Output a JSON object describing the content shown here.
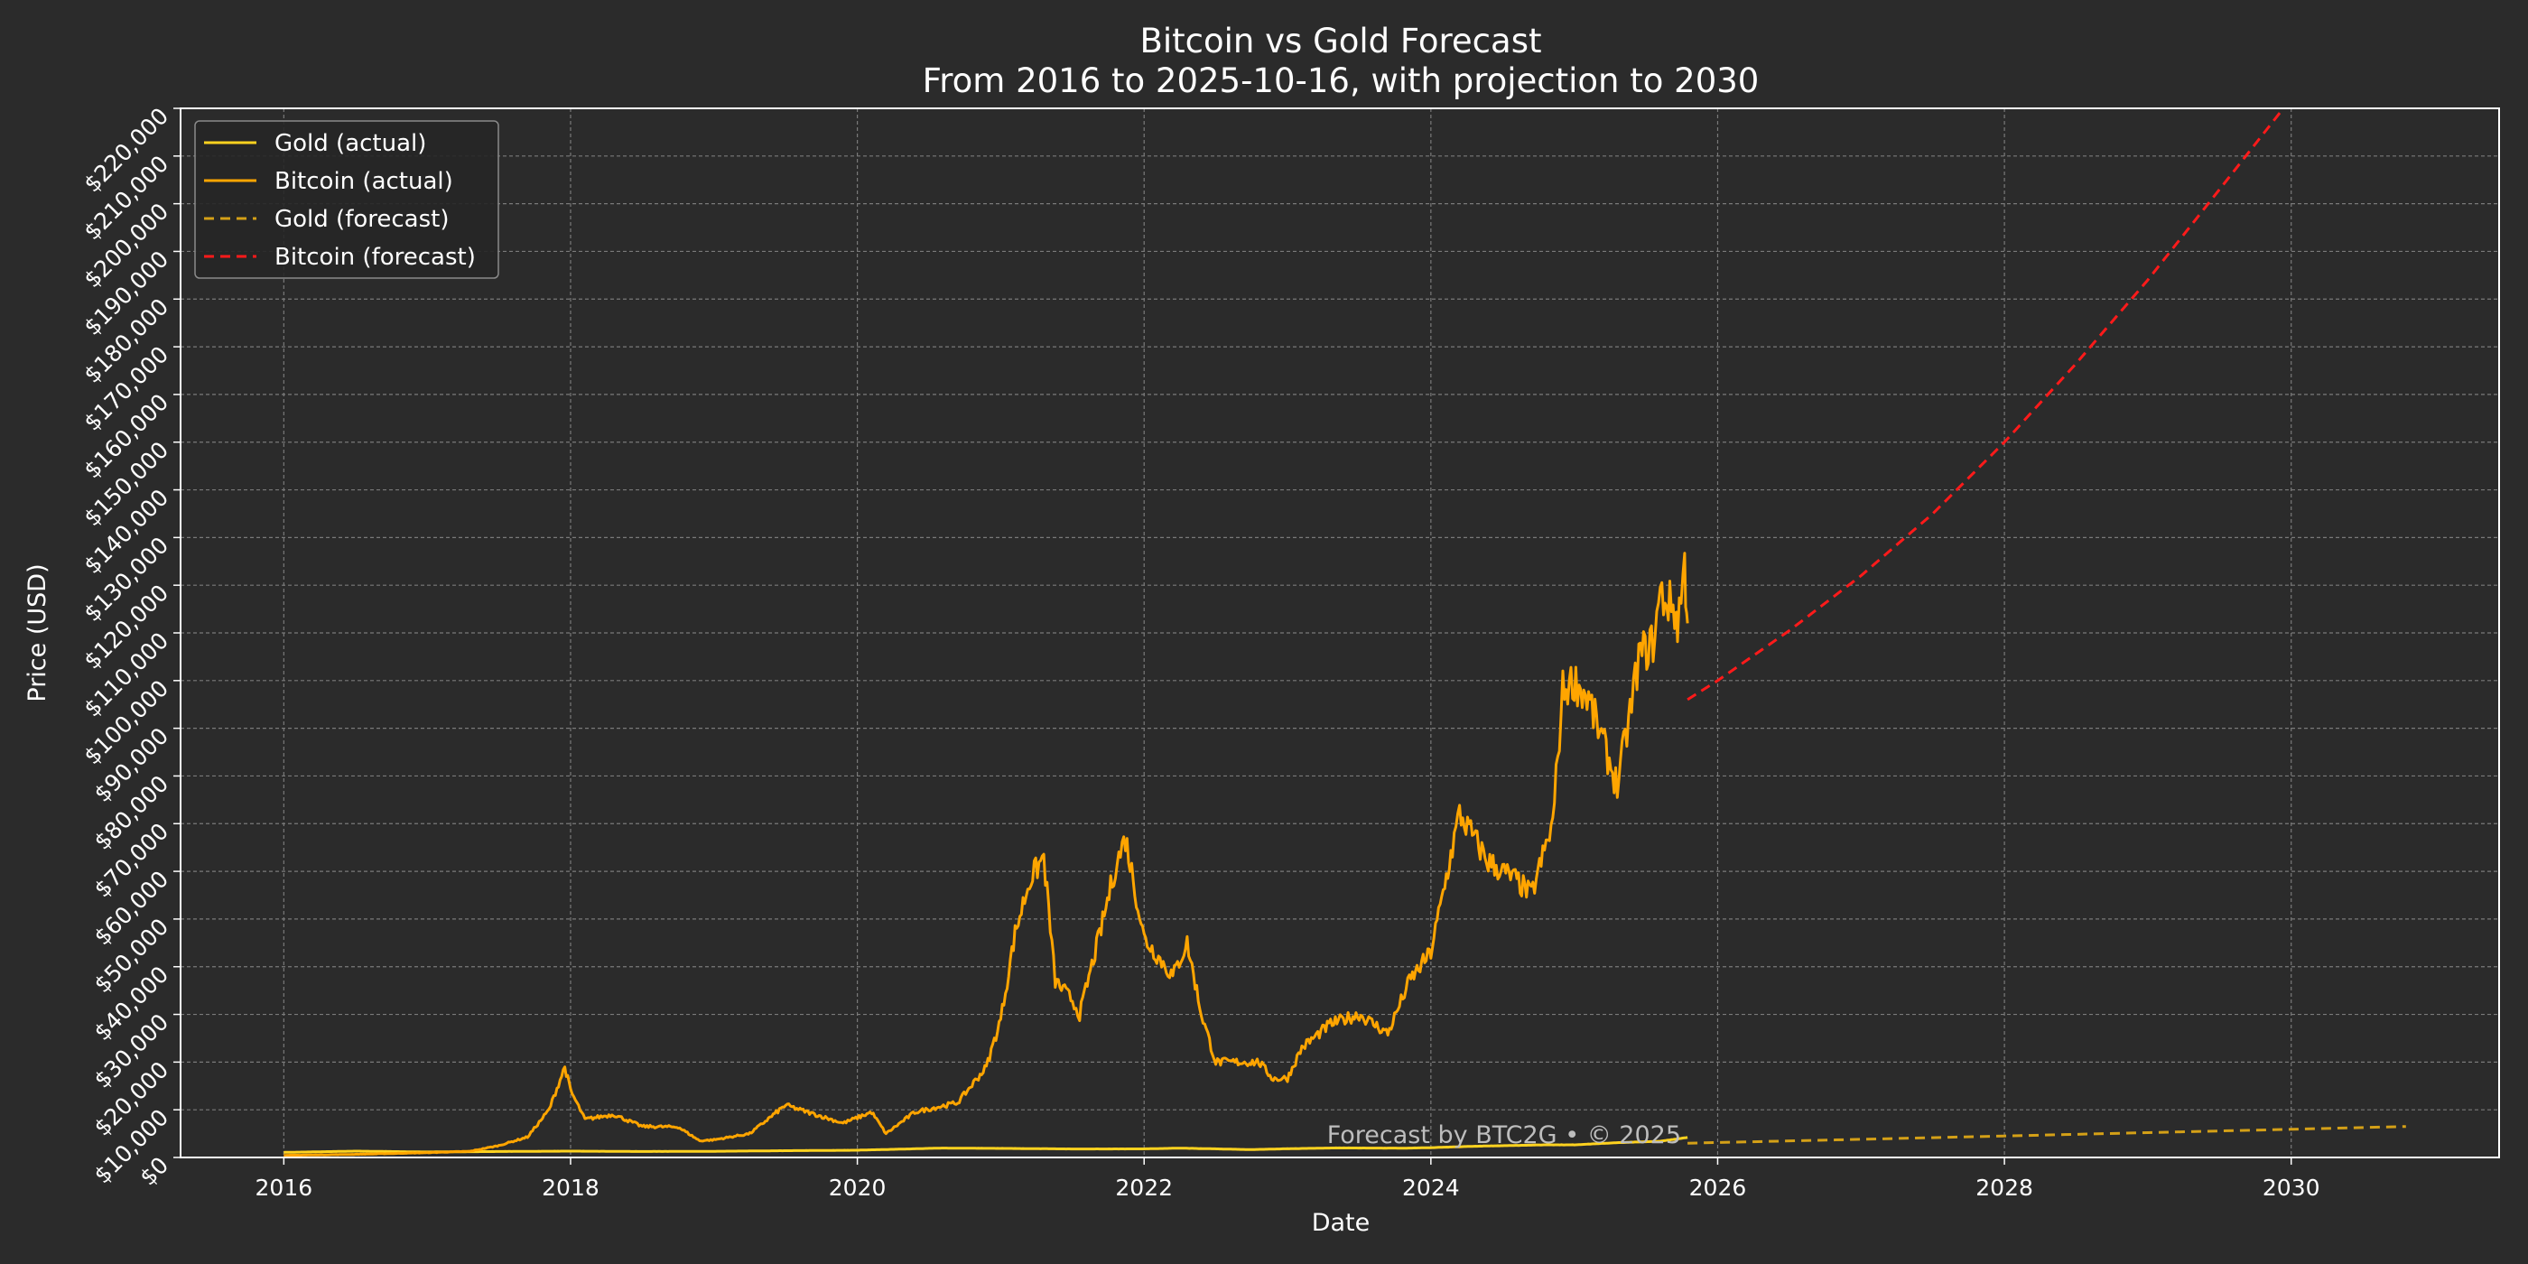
{
  "chart_data": {
    "type": "line",
    "title": "Bitcoin vs Gold Forecast",
    "subtitle": "From 2016 to 2025-10-16, with projection to 2030",
    "xlabel": "Date",
    "ylabel": "Price (USD)",
    "xlim": [
      2015.28,
      2031.45
    ],
    "ylim": [
      0,
      220000
    ],
    "x_ticks": [
      2016,
      2018,
      2020,
      2022,
      2024,
      2026,
      2028,
      2030
    ],
    "x_tick_labels": [
      "2016",
      "2018",
      "2020",
      "2022",
      "2024",
      "2026",
      "2028",
      "2030"
    ],
    "y_ticks": [
      0,
      10000,
      20000,
      30000,
      40000,
      50000,
      60000,
      70000,
      80000,
      90000,
      100000,
      110000,
      120000,
      130000,
      140000,
      150000,
      160000,
      170000,
      180000,
      190000,
      200000,
      210000,
      220000
    ],
    "y_tick_labels": [
      "$0",
      "$10,000",
      "$20,000",
      "$30,000",
      "$40,000",
      "$50,000",
      "$60,000",
      "$70,000",
      "$80,000",
      "$90,000",
      "$100,000",
      "$110,000",
      "$120,000",
      "$130,000",
      "$140,000",
      "$150,000",
      "$160,000",
      "$170,000",
      "$180,000",
      "$190,000",
      "$200,000",
      "$210,000",
      "$220,000"
    ],
    "grid": true,
    "legend_position": "top-left",
    "annotation": "Forecast by BTC2G • © 2025",
    "colors": {
      "background": "#2b2b2b",
      "grid": "#7a7a7a",
      "axes": "#ffffff",
      "gold_actual": "#ffd21f",
      "bitcoin_actual": "#ffa500",
      "gold_forecast": "#d4a017",
      "bitcoin_forecast": "#ff1a1a"
    },
    "series": [
      {
        "name": "Gold (actual)",
        "style": "solid",
        "color_key": "gold_actual",
        "points": [
          [
            2016.0,
            1060
          ],
          [
            2016.5,
            1330
          ],
          [
            2017.0,
            1150
          ],
          [
            2017.5,
            1250
          ],
          [
            2018.0,
            1330
          ],
          [
            2018.5,
            1250
          ],
          [
            2019.0,
            1290
          ],
          [
            2019.5,
            1420
          ],
          [
            2020.0,
            1520
          ],
          [
            2020.6,
            1970
          ],
          [
            2021.0,
            1900
          ],
          [
            2021.5,
            1780
          ],
          [
            2022.0,
            1800
          ],
          [
            2022.25,
            1950
          ],
          [
            2022.75,
            1650
          ],
          [
            2023.0,
            1830
          ],
          [
            2023.35,
            2000
          ],
          [
            2023.8,
            1950
          ],
          [
            2024.0,
            2050
          ],
          [
            2024.3,
            2350
          ],
          [
            2024.8,
            2650
          ],
          [
            2025.0,
            2650
          ],
          [
            2025.3,
            3100
          ],
          [
            2025.6,
            3400
          ],
          [
            2025.79,
            4200
          ]
        ]
      },
      {
        "name": "Bitcoin (actual)",
        "style": "solid",
        "color_key": "bitcoin_actual",
        "points": [
          [
            2016.0,
            430
          ],
          [
            2016.5,
            650
          ],
          [
            2017.0,
            1000
          ],
          [
            2017.3,
            1300
          ],
          [
            2017.5,
            2500
          ],
          [
            2017.7,
            4300
          ],
          [
            2017.85,
            10000
          ],
          [
            2017.96,
            19000
          ],
          [
            2018.0,
            14000
          ],
          [
            2018.1,
            8000
          ],
          [
            2018.3,
            9000
          ],
          [
            2018.5,
            6500
          ],
          [
            2018.75,
            6400
          ],
          [
            2018.9,
            3500
          ],
          [
            2019.0,
            3700
          ],
          [
            2019.25,
            5000
          ],
          [
            2019.5,
            11000
          ],
          [
            2019.6,
            10000
          ],
          [
            2019.9,
            7200
          ],
          [
            2020.1,
            9500
          ],
          [
            2020.2,
            5000
          ],
          [
            2020.4,
            9500
          ],
          [
            2020.7,
            11500
          ],
          [
            2020.9,
            19000
          ],
          [
            2021.0,
            29000
          ],
          [
            2021.1,
            47000
          ],
          [
            2021.2,
            58000
          ],
          [
            2021.3,
            63000
          ],
          [
            2021.38,
            37000
          ],
          [
            2021.5,
            33000
          ],
          [
            2021.55,
            30000
          ],
          [
            2021.7,
            48000
          ],
          [
            2021.8,
            61000
          ],
          [
            2021.87,
            67000
          ],
          [
            2022.0,
            46000
          ],
          [
            2022.2,
            38000
          ],
          [
            2022.3,
            45000
          ],
          [
            2022.4,
            30000
          ],
          [
            2022.5,
            20000
          ],
          [
            2022.8,
            20000
          ],
          [
            2022.9,
            16500
          ],
          [
            2023.0,
            16600
          ],
          [
            2023.1,
            23000
          ],
          [
            2023.3,
            28000
          ],
          [
            2023.5,
            30000
          ],
          [
            2023.7,
            26000
          ],
          [
            2023.85,
            37000
          ],
          [
            2024.0,
            43000
          ],
          [
            2024.15,
            65000
          ],
          [
            2024.2,
            72000
          ],
          [
            2024.4,
            62000
          ],
          [
            2024.6,
            58000
          ],
          [
            2024.7,
            55000
          ],
          [
            2024.85,
            70000
          ],
          [
            2024.92,
            98000
          ],
          [
            2025.0,
            100000
          ],
          [
            2025.1,
            96000
          ],
          [
            2025.3,
            78000
          ],
          [
            2025.4,
            95000
          ],
          [
            2025.45,
            105000
          ],
          [
            2025.55,
            108000
          ],
          [
            2025.6,
            118000
          ],
          [
            2025.7,
            115000
          ],
          [
            2025.72,
            112000
          ],
          [
            2025.77,
            124000
          ],
          [
            2025.79,
            112000
          ]
        ]
      },
      {
        "name": "Gold (forecast)",
        "style": "dashed",
        "color_key": "gold_forecast",
        "points": [
          [
            2025.79,
            3000
          ],
          [
            2027.0,
            3800
          ],
          [
            2028.0,
            4500
          ],
          [
            2029.0,
            5200
          ],
          [
            2030.0,
            5900
          ],
          [
            2030.8,
            6500
          ]
        ]
      },
      {
        "name": "Bitcoin (forecast)",
        "style": "dashed",
        "color_key": "bitcoin_forecast",
        "points": [
          [
            2025.79,
            96000
          ],
          [
            2026.0,
            100000
          ],
          [
            2026.5,
            110500
          ],
          [
            2027.0,
            122000
          ],
          [
            2027.5,
            135000
          ],
          [
            2028.0,
            150000
          ],
          [
            2028.5,
            166500
          ],
          [
            2029.0,
            184000
          ],
          [
            2029.5,
            203000
          ],
          [
            2030.05,
            224000
          ]
        ]
      }
    ]
  }
}
